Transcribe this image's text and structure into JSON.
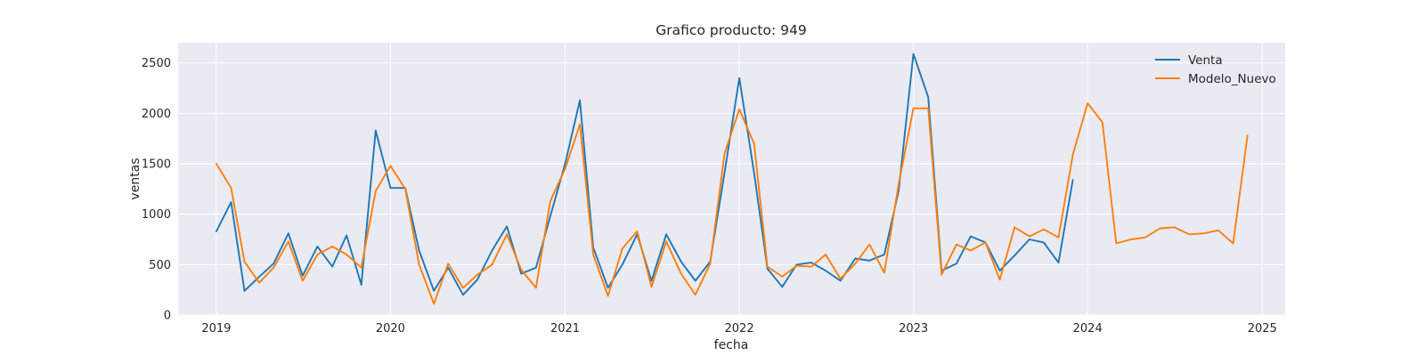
{
  "chart_data": {
    "type": "line",
    "title": "Grafico producto: 949",
    "xlabel": "fecha",
    "ylabel": "ventas",
    "x_tick_labels": [
      "2019",
      "2020",
      "2021",
      "2022",
      "2023",
      "2024",
      "2025"
    ],
    "y_tick_labels": [
      "0",
      "500",
      "1000",
      "1500",
      "2000",
      "2500"
    ],
    "y_ticks": [
      0,
      500,
      1000,
      1500,
      2000,
      2500
    ],
    "xlim": [
      "2018-10-13",
      "2025-02-18"
    ],
    "ylim": [
      0,
      2700
    ],
    "grid": true,
    "legend_position": "top-right",
    "background": "#eaeaf2",
    "series": [
      {
        "name": "Venta",
        "color": "#1f77b4",
        "x": [
          "2019-01-01",
          "2019-02-01",
          "2019-03-01",
          "2019-04-01",
          "2019-05-01",
          "2019-06-01",
          "2019-07-01",
          "2019-08-01",
          "2019-09-01",
          "2019-10-01",
          "2019-11-01",
          "2019-12-01",
          "2020-01-01",
          "2020-02-01",
          "2020-03-01",
          "2020-04-01",
          "2020-05-01",
          "2020-06-01",
          "2020-07-01",
          "2020-08-01",
          "2020-09-01",
          "2020-10-01",
          "2020-11-01",
          "2020-12-01",
          "2021-01-01",
          "2021-02-01",
          "2021-03-01",
          "2021-04-01",
          "2021-05-01",
          "2021-06-01",
          "2021-07-01",
          "2021-08-01",
          "2021-09-01",
          "2021-10-01",
          "2021-11-01",
          "2021-12-01",
          "2022-01-01",
          "2022-02-01",
          "2022-03-01",
          "2022-04-01",
          "2022-05-01",
          "2022-06-01",
          "2022-07-01",
          "2022-08-01",
          "2022-09-01",
          "2022-10-01",
          "2022-11-01",
          "2022-12-01",
          "2023-01-01",
          "2023-02-01",
          "2023-03-01",
          "2023-04-01",
          "2023-05-01",
          "2023-06-01",
          "2023-07-01",
          "2023-08-01",
          "2023-09-01",
          "2023-10-01",
          "2023-11-01",
          "2023-12-01"
        ],
        "values": [
          830,
          1120,
          240,
          380,
          510,
          810,
          390,
          680,
          480,
          790,
          300,
          1830,
          1260,
          1260,
          640,
          240,
          470,
          200,
          350,
          640,
          880,
          410,
          470,
          980,
          1500,
          2130,
          670,
          270,
          500,
          800,
          340,
          800,
          530,
          340,
          530,
          1410,
          2350,
          1410,
          460,
          280,
          500,
          520,
          440,
          340,
          560,
          540,
          600,
          1230,
          2590,
          2160,
          440,
          510,
          780,
          720,
          440,
          590,
          750,
          720,
          520,
          1340
        ]
      },
      {
        "name": "Modelo_Nuevo",
        "color": "#ff7f0e",
        "x": [
          "2019-01-01",
          "2019-02-01",
          "2019-03-01",
          "2019-04-01",
          "2019-05-01",
          "2019-06-01",
          "2019-07-01",
          "2019-08-01",
          "2019-09-01",
          "2019-10-01",
          "2019-11-01",
          "2019-12-01",
          "2020-01-01",
          "2020-02-01",
          "2020-03-01",
          "2020-04-01",
          "2020-05-01",
          "2020-06-01",
          "2020-07-01",
          "2020-08-01",
          "2020-09-01",
          "2020-10-01",
          "2020-11-01",
          "2020-12-01",
          "2021-01-01",
          "2021-02-01",
          "2021-03-01",
          "2021-04-01",
          "2021-05-01",
          "2021-06-01",
          "2021-07-01",
          "2021-08-01",
          "2021-09-01",
          "2021-10-01",
          "2021-11-01",
          "2021-12-01",
          "2022-01-01",
          "2022-02-01",
          "2022-03-01",
          "2022-04-01",
          "2022-05-01",
          "2022-06-01",
          "2022-07-01",
          "2022-08-01",
          "2022-09-01",
          "2022-10-01",
          "2022-11-01",
          "2022-12-01",
          "2023-01-01",
          "2023-02-01",
          "2023-03-01",
          "2023-04-01",
          "2023-05-01",
          "2023-06-01",
          "2023-07-01",
          "2023-08-01",
          "2023-09-01",
          "2023-10-01",
          "2023-11-01",
          "2023-12-01",
          "2024-01-01",
          "2024-02-01",
          "2024-03-01",
          "2024-04-01",
          "2024-05-01",
          "2024-06-01",
          "2024-07-01",
          "2024-08-01",
          "2024-09-01",
          "2024-10-01",
          "2024-11-01",
          "2024-12-01"
        ],
        "values": [
          1500,
          1260,
          530,
          320,
          470,
          730,
          340,
          600,
          680,
          600,
          470,
          1230,
          1480,
          1250,
          500,
          110,
          510,
          270,
          400,
          500,
          800,
          450,
          270,
          1130,
          1450,
          1890,
          600,
          190,
          660,
          830,
          280,
          730,
          410,
          200,
          510,
          1600,
          2040,
          1700,
          480,
          380,
          490,
          480,
          600,
          360,
          510,
          700,
          420,
          1300,
          2050,
          2050,
          400,
          700,
          640,
          720,
          350,
          870,
          780,
          850,
          770,
          1590,
          2100,
          1910,
          710,
          750,
          770,
          860,
          870,
          800,
          810,
          840,
          710,
          1780
        ]
      }
    ]
  }
}
